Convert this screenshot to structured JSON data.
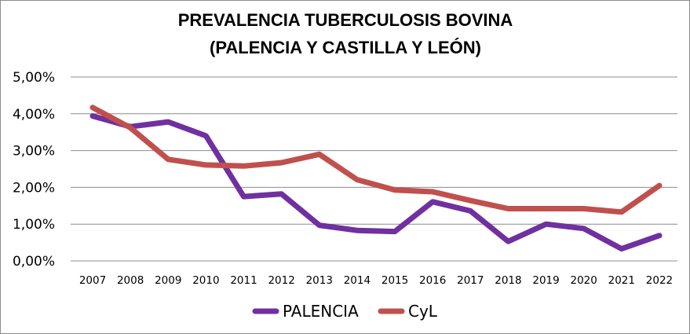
{
  "chart_data": {
    "type": "line",
    "title": "PREVALENCIA TUBERCULOSIS BOVINA\n(PALENCIA Y CASTILLA Y LEÓN)",
    "title_lines": [
      "PREVALENCIA TUBERCULOSIS BOVINA",
      "(PALENCIA Y CASTILLA Y LEÓN)"
    ],
    "xlabel": "",
    "ylabel": "",
    "x": [
      "2007",
      "2008",
      "2009",
      "2010",
      "2011",
      "2012",
      "2013",
      "2014",
      "2015",
      "2016",
      "2017",
      "2018",
      "2019",
      "2020",
      "2021",
      "2022"
    ],
    "ylim": [
      0,
      5
    ],
    "yticks": [
      0,
      1,
      2,
      3,
      4,
      5
    ],
    "ytick_labels": [
      "0,00%",
      "1,00%",
      "2,00%",
      "3,00%",
      "4,00%",
      "5,00%"
    ],
    "y_unit": "%",
    "grid": true,
    "legend_position": "bottom",
    "series": [
      {
        "name": "PALENCIA",
        "color": "#7030a0",
        "values": [
          3.94,
          3.65,
          3.78,
          3.4,
          1.75,
          1.82,
          0.97,
          0.83,
          0.8,
          1.61,
          1.36,
          0.53,
          1.0,
          0.88,
          0.33,
          0.69
        ]
      },
      {
        "name": "CyL",
        "color": "#c0504d",
        "values": [
          4.17,
          3.62,
          2.76,
          2.61,
          2.58,
          2.67,
          2.9,
          2.21,
          1.93,
          1.88,
          1.64,
          1.42,
          1.42,
          1.42,
          1.33,
          2.05
        ]
      }
    ]
  }
}
